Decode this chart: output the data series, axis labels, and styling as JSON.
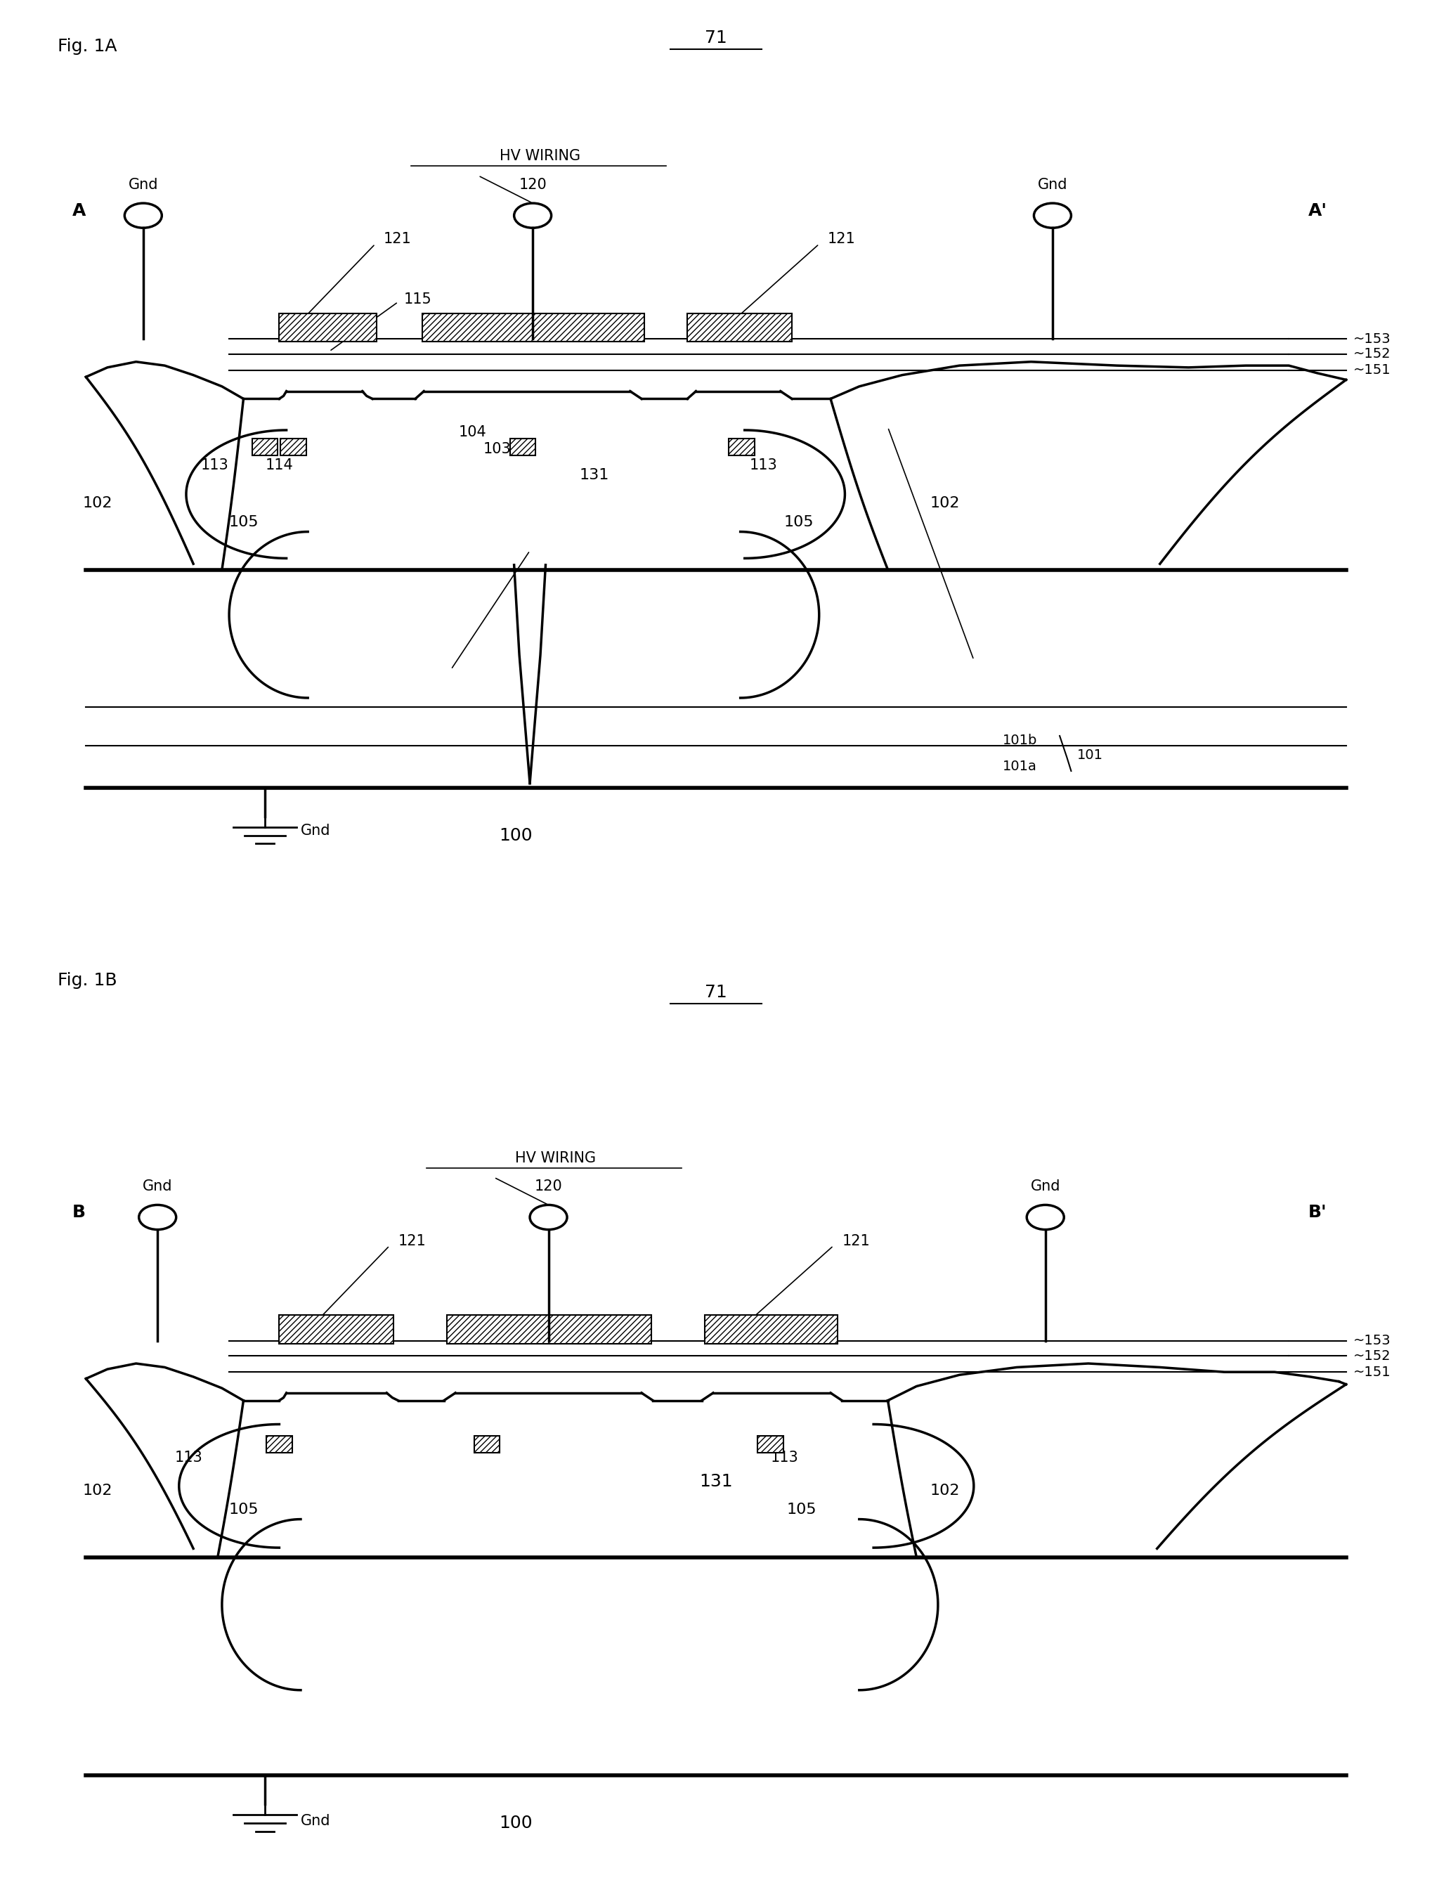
{
  "fig_title_1": "Fig. 1A",
  "fig_title_2": "Fig. 1B",
  "label_71": "71",
  "bg_color": "#ffffff",
  "labels": {
    "A": "A",
    "Ap": "A'",
    "B": "B",
    "Bp": "B'",
    "Gnd": "Gnd",
    "HV_WIRING": "HV WIRING",
    "n100": "100",
    "n101": "101",
    "n101a": "101a",
    "n101b": "101b",
    "n102": "102",
    "n103": "103",
    "n104": "104",
    "n105": "105",
    "n113": "113",
    "n114": "114",
    "n115": "115",
    "n120": "120",
    "n121": "121",
    "n131": "131",
    "n151": "151",
    "n152": "152",
    "n153": "153"
  }
}
